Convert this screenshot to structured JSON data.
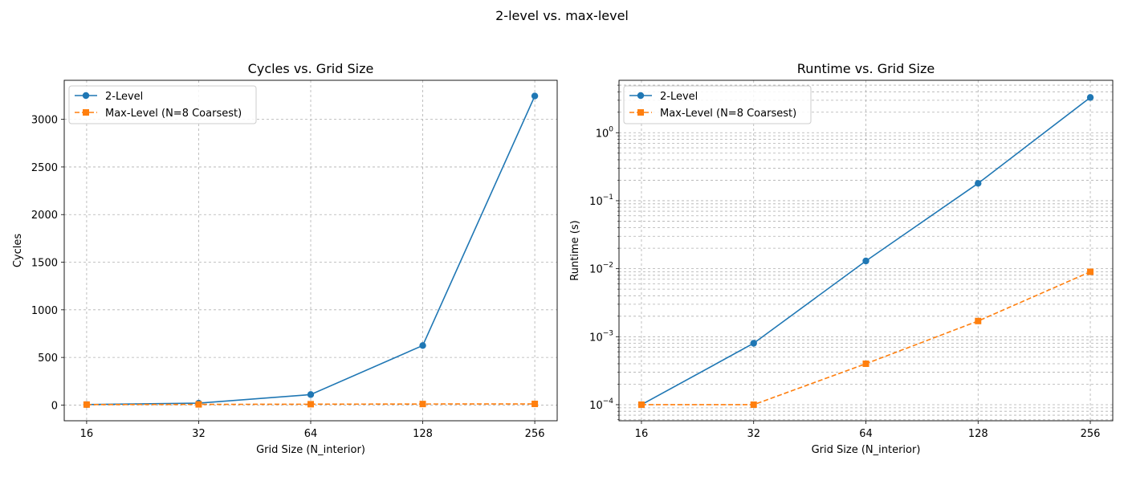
{
  "figure": {
    "suptitle": "2-level vs. max-level"
  },
  "chart_data": [
    {
      "type": "line",
      "title": "Cycles vs. Grid Size",
      "xlabel": "Grid Size (N_interior)",
      "ylabel": "Cycles",
      "x_scale": "log2",
      "y_scale": "linear",
      "x": [
        16,
        32,
        64,
        128,
        256
      ],
      "xticks": [
        "16",
        "32",
        "64",
        "128",
        "256"
      ],
      "yticks": [
        0,
        500,
        1000,
        1500,
        2000,
        2500,
        3000
      ],
      "ylim": [
        -165,
        3410
      ],
      "grid": true,
      "legend_position": "top-left",
      "series": [
        {
          "name": "2-Level",
          "values": [
            5,
            20,
            110,
            625,
            3245
          ],
          "color": "#1f77b4",
          "marker": "circle",
          "linestyle": "solid"
        },
        {
          "name": "Max-Level (N=8 Coarsest)",
          "values": [
            5,
            7,
            9,
            11,
            12
          ],
          "color": "#ff7f0e",
          "marker": "square",
          "linestyle": "dashed"
        }
      ]
    },
    {
      "type": "line",
      "title": "Runtime vs. Grid Size",
      "xlabel": "Grid Size (N_interior)",
      "ylabel": "Runtime (s)",
      "x_scale": "log2",
      "y_scale": "log",
      "x": [
        16,
        32,
        64,
        128,
        256
      ],
      "xticks": [
        "16",
        "32",
        "64",
        "128",
        "256"
      ],
      "yticks": [
        0.0001,
        0.001,
        0.01,
        0.1,
        1
      ],
      "ytick_exponents": [
        "−4",
        "−3",
        "−2",
        "−1",
        "0"
      ],
      "ylim": [
        5.8e-05,
        5.9
      ],
      "grid": true,
      "legend_position": "top-left",
      "series": [
        {
          "name": "2-Level",
          "values": [
            0.0001,
            0.0008,
            0.013,
            0.18,
            3.3
          ],
          "color": "#1f77b4",
          "marker": "circle",
          "linestyle": "solid"
        },
        {
          "name": "Max-Level (N=8 Coarsest)",
          "values": [
            0.0001,
            0.0001,
            0.0004,
            0.0017,
            0.009
          ],
          "color": "#ff7f0e",
          "marker": "square",
          "linestyle": "dashed"
        }
      ]
    }
  ]
}
